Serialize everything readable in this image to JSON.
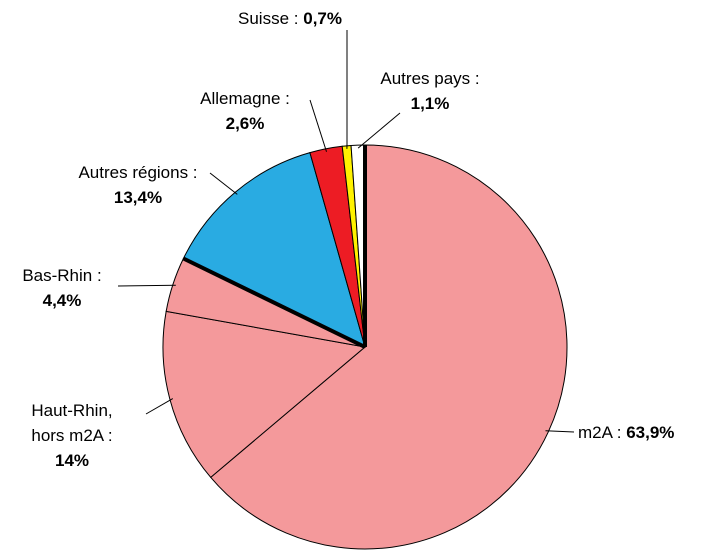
{
  "chart_data": {
    "type": "pie",
    "categories": [
      "m2A :",
      "Haut-Rhin, hors m2A :",
      "Bas-Rhin :",
      "Autres régions :",
      "Allemagne :",
      "Suisse :",
      "Autres pays :"
    ],
    "values": [
      63.9,
      14,
      4.4,
      13.4,
      2.6,
      0.7,
      1.1
    ],
    "value_labels": [
      "63,9%",
      "14%",
      "4,4%",
      "13,4%",
      "2,6%",
      "0,7%",
      "1,1%"
    ],
    "colors": [
      "#f4999b",
      "#f4999b",
      "#f4999b",
      "#29abe2",
      "#ed1c24",
      "#fff200",
      "#ffffff"
    ]
  }
}
